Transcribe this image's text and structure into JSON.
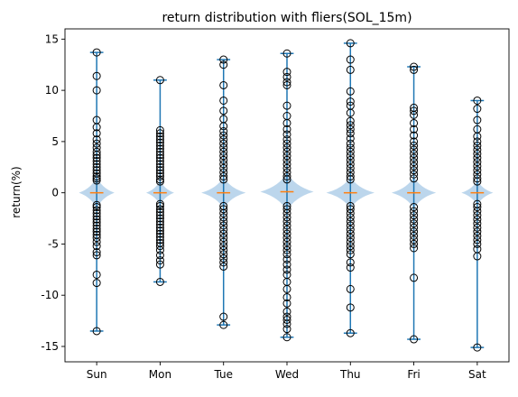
{
  "chart_data": {
    "type": "box",
    "title": "return distribution with fliers(SOL_15m)",
    "xlabel": "",
    "ylabel": "return(%)",
    "ylim": [
      -16.5,
      16.0
    ],
    "yticks": [
      -15,
      -10,
      -5,
      0,
      5,
      10,
      15
    ],
    "categories": [
      "Sun",
      "Mon",
      "Tue",
      "Wed",
      "Thu",
      "Fri",
      "Sat"
    ],
    "colors": {
      "whisker": "#1f77b4",
      "median": "#ff7f0e",
      "violin": "#a6c8e6",
      "flier": "#000000"
    },
    "boxes": [
      {
        "label": "Sun",
        "min": -13.5,
        "max": 13.7,
        "median": 0.0,
        "q1": -0.25,
        "q3": 0.25,
        "violin_halfwidth": 0.28,
        "fliers": [
          13.7,
          11.4,
          10.0,
          7.1,
          6.4,
          5.8,
          5.2,
          4.8,
          4.4,
          4.0,
          3.7,
          3.4,
          3.1,
          2.8,
          2.5,
          2.2,
          1.9,
          1.6,
          1.4,
          1.2,
          -1.2,
          -1.4,
          -1.7,
          -2.0,
          -2.3,
          -2.6,
          -2.9,
          -3.2,
          -3.5,
          -3.8,
          -4.1,
          -4.4,
          -4.8,
          -5.2,
          -5.8,
          -6.1,
          -8.0,
          -8.8,
          -13.5
        ]
      },
      {
        "label": "Mon",
        "min": -8.7,
        "max": 11.0,
        "median": 0.0,
        "q1": -0.2,
        "q3": 0.2,
        "violin_halfwidth": 0.22,
        "fliers": [
          11.0,
          6.1,
          5.8,
          5.5,
          5.2,
          4.9,
          4.6,
          4.3,
          4.0,
          3.7,
          3.4,
          3.1,
          2.8,
          2.5,
          2.2,
          1.9,
          1.6,
          1.3,
          1.1,
          -1.1,
          -1.3,
          -1.6,
          -1.9,
          -2.2,
          -2.5,
          -2.8,
          -3.1,
          -3.4,
          -3.7,
          -4.0,
          -4.3,
          -4.6,
          -4.9,
          -5.2,
          -5.6,
          -6.1,
          -6.6,
          -7.0,
          -8.7
        ]
      },
      {
        "label": "Tue",
        "min": -12.9,
        "max": 13.0,
        "median": 0.0,
        "q1": -0.25,
        "q3": 0.25,
        "violin_halfwidth": 0.35,
        "fliers": [
          13.0,
          12.5,
          10.5,
          9.0,
          8.0,
          7.2,
          6.5,
          6.0,
          5.6,
          5.2,
          4.8,
          4.4,
          4.0,
          3.6,
          3.2,
          2.8,
          2.4,
          2.0,
          1.6,
          1.3,
          -1.3,
          -1.6,
          -2.0,
          -2.4,
          -2.8,
          -3.2,
          -3.6,
          -4.0,
          -4.4,
          -4.8,
          -5.2,
          -5.6,
          -6.0,
          -6.4,
          -6.8,
          -7.2,
          -12.1,
          -12.9
        ]
      },
      {
        "label": "Wed",
        "min": -14.1,
        "max": 13.6,
        "median": 0.1,
        "q1": -0.3,
        "q3": 0.3,
        "violin_halfwidth": 0.42,
        "fliers": [
          13.6,
          11.8,
          11.3,
          10.8,
          10.5,
          8.5,
          7.5,
          6.8,
          6.2,
          5.7,
          5.2,
          4.8,
          4.4,
          4.0,
          3.6,
          3.2,
          2.8,
          2.4,
          2.0,
          1.6,
          1.3,
          -1.3,
          -1.6,
          -2.0,
          -2.4,
          -2.8,
          -3.2,
          -3.6,
          -4.0,
          -4.4,
          -4.8,
          -5.2,
          -5.6,
          -6.0,
          -6.5,
          -7.0,
          -7.5,
          -8.0,
          -8.7,
          -9.4,
          -10.2,
          -10.8,
          -11.6,
          -12.1,
          -12.4,
          -12.8,
          -13.3,
          -14.1
        ]
      },
      {
        "label": "Thu",
        "min": -13.7,
        "max": 14.6,
        "median": 0.0,
        "q1": -0.25,
        "q3": 0.25,
        "violin_halfwidth": 0.38,
        "fliers": [
          14.6,
          13.0,
          12.0,
          9.9,
          8.9,
          8.5,
          7.8,
          7.0,
          6.6,
          6.2,
          5.8,
          5.3,
          4.8,
          4.4,
          4.0,
          3.6,
          3.2,
          2.8,
          2.4,
          2.0,
          1.6,
          1.3,
          -1.3,
          -1.6,
          -2.0,
          -2.4,
          -2.8,
          -3.2,
          -3.6,
          -4.0,
          -4.4,
          -4.8,
          -5.2,
          -5.6,
          -6.0,
          -6.8,
          -7.3,
          -9.4,
          -11.2,
          -13.7
        ]
      },
      {
        "label": "Fri",
        "min": -14.3,
        "max": 12.3,
        "median": 0.0,
        "q1": -0.25,
        "q3": 0.25,
        "violin_halfwidth": 0.35,
        "fliers": [
          12.3,
          12.0,
          8.3,
          8.0,
          7.6,
          6.8,
          6.2,
          5.6,
          5.0,
          4.6,
          4.2,
          3.8,
          3.4,
          3.0,
          2.6,
          2.2,
          1.8,
          1.4,
          -1.4,
          -1.8,
          -2.2,
          -2.6,
          -3.0,
          -3.4,
          -3.8,
          -4.2,
          -4.6,
          -5.0,
          -5.4,
          -8.3,
          -14.3
        ]
      },
      {
        "label": "Sat",
        "min": -15.1,
        "max": 9.0,
        "median": 0.0,
        "q1": -0.2,
        "q3": 0.2,
        "violin_halfwidth": 0.25,
        "fliers": [
          9.0,
          8.2,
          7.1,
          6.2,
          5.5,
          5.0,
          4.6,
          4.2,
          3.8,
          3.4,
          3.0,
          2.6,
          2.2,
          1.8,
          1.4,
          1.1,
          -1.1,
          -1.4,
          -1.8,
          -2.2,
          -2.6,
          -3.0,
          -3.4,
          -3.8,
          -4.2,
          -4.6,
          -5.0,
          -5.5,
          -6.2,
          -15.1
        ]
      }
    ]
  }
}
